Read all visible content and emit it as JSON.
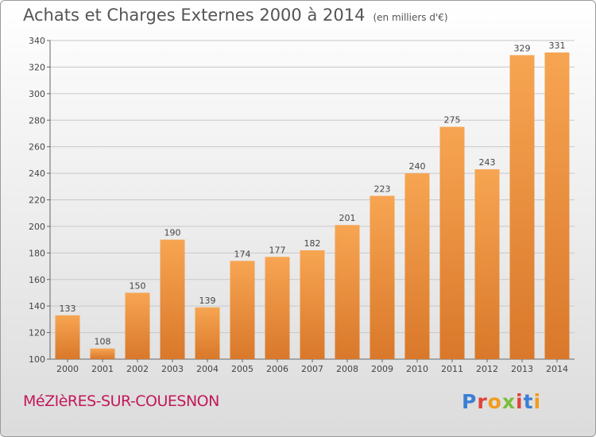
{
  "header": {
    "title": "Achats et Charges Externes 2000 à 2014",
    "subtitle": "(en milliers d'€)"
  },
  "footer": {
    "place": "MéZIèRES-SUR-COUESNON",
    "logo_letters": [
      {
        "char": "P",
        "color": "#3a7fd5"
      },
      {
        "char": "r",
        "color": "#e0433a"
      },
      {
        "char": "o",
        "color": "#f29b1d"
      },
      {
        "char": "x",
        "color": "#7bbf3a"
      },
      {
        "char": "i",
        "color": "#e0433a"
      },
      {
        "char": "t",
        "color": "#3a7fd5"
      },
      {
        "char": "i",
        "color": "#f29b1d"
      }
    ]
  },
  "chart_data": {
    "type": "bar",
    "categories": [
      "2000",
      "2001",
      "2002",
      "2003",
      "2004",
      "2005",
      "2006",
      "2007",
      "2008",
      "2009",
      "2010",
      "2011",
      "2012",
      "2013",
      "2014"
    ],
    "values": [
      133,
      108,
      150,
      190,
      139,
      174,
      177,
      182,
      201,
      223,
      240,
      275,
      243,
      329,
      331
    ],
    "ylim": [
      100,
      340
    ],
    "yticks": [
      100,
      120,
      140,
      160,
      180,
      200,
      220,
      240,
      260,
      280,
      300,
      320,
      340
    ],
    "grid": true,
    "bar_color_light": "#f7a552",
    "bar_color_dark": "#d9782a",
    "xlabel": "",
    "ylabel": ""
  }
}
